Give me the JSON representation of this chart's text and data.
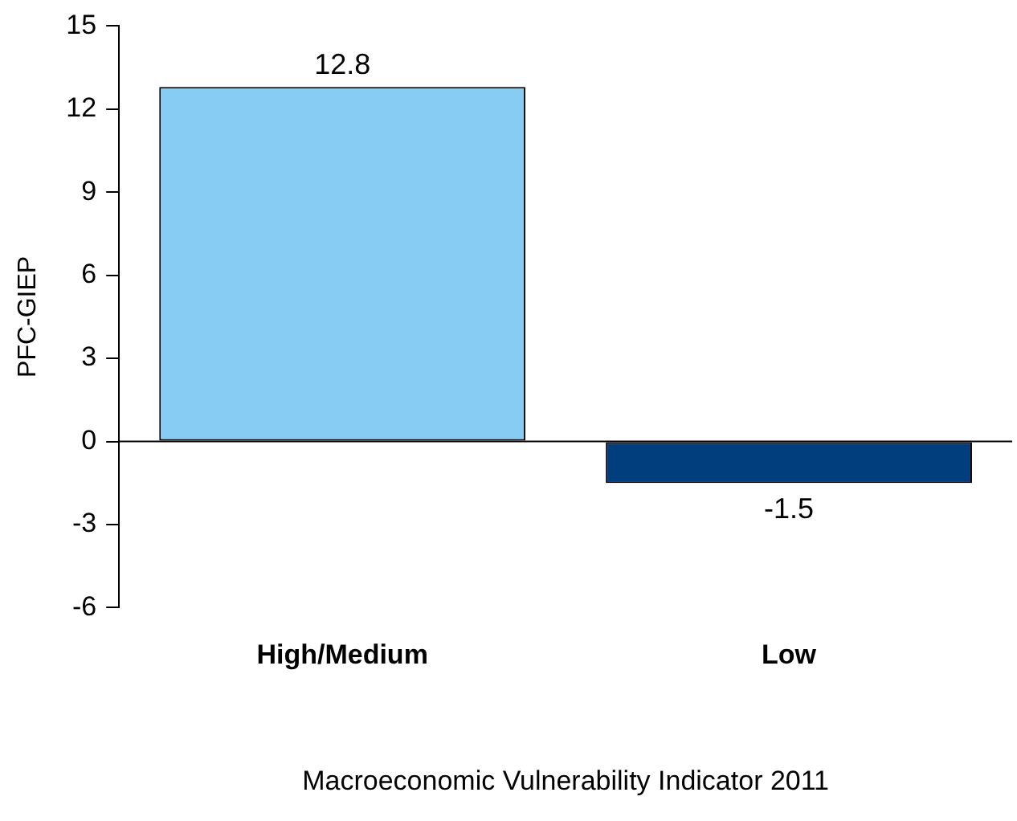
{
  "chart_data": {
    "type": "bar",
    "xlabel": "Macroeconomic Vulnerability Indicator 2011",
    "ylabel": "PFC-GIEP",
    "categories": [
      "High/Medium",
      "Low"
    ],
    "values": [
      12.8,
      -1.5
    ],
    "colors": [
      "#87ccf2",
      "#003e7e"
    ],
    "ylim": [
      -6,
      15
    ],
    "yticks": [
      -6,
      -3,
      0,
      3,
      6,
      9,
      12,
      15
    ],
    "legend": false,
    "data_labels": true
  }
}
